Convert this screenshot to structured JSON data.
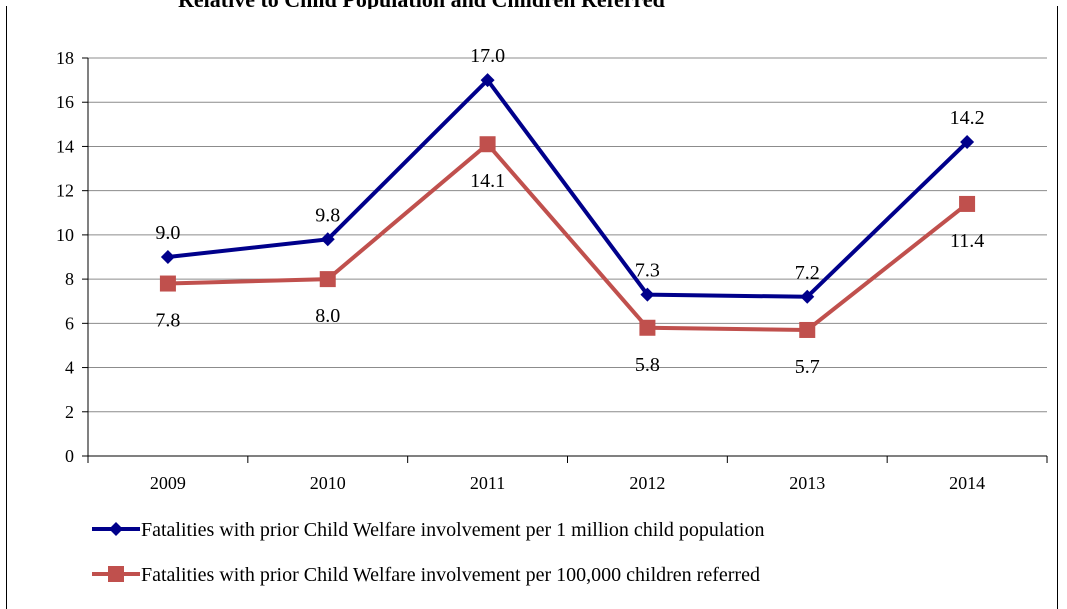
{
  "page": {
    "title_fragment": "Relative to Child Population and Children Referred"
  },
  "chart_data": {
    "type": "line",
    "categories": [
      "2009",
      "2010",
      "2011",
      "2012",
      "2013",
      "2014"
    ],
    "ylim": [
      0,
      18
    ],
    "yticks": [
      0,
      2,
      4,
      6,
      8,
      10,
      12,
      14,
      16,
      18
    ],
    "grid": true,
    "legend_placement": "bottom",
    "series": [
      {
        "name": "Fatalities with prior Child Welfare involvement per 1 million child population",
        "values": [
          9.0,
          9.8,
          17.0,
          7.3,
          7.2,
          14.2
        ],
        "labels": [
          "9.0",
          "9.8",
          "17.0",
          "7.3",
          "7.2",
          "14.2"
        ],
        "color": "#00008B",
        "marker": "diamond",
        "label_position": "above"
      },
      {
        "name": "Fatalities with prior Child Welfare involvement per 100,000 children referred",
        "values": [
          7.8,
          8.0,
          14.1,
          5.8,
          5.7,
          11.4
        ],
        "labels": [
          "7.8",
          "8.0",
          "14.1",
          "5.8",
          "5.7",
          "11.4"
        ],
        "color": "#C0504D",
        "marker": "square",
        "label_position": "below"
      }
    ]
  }
}
